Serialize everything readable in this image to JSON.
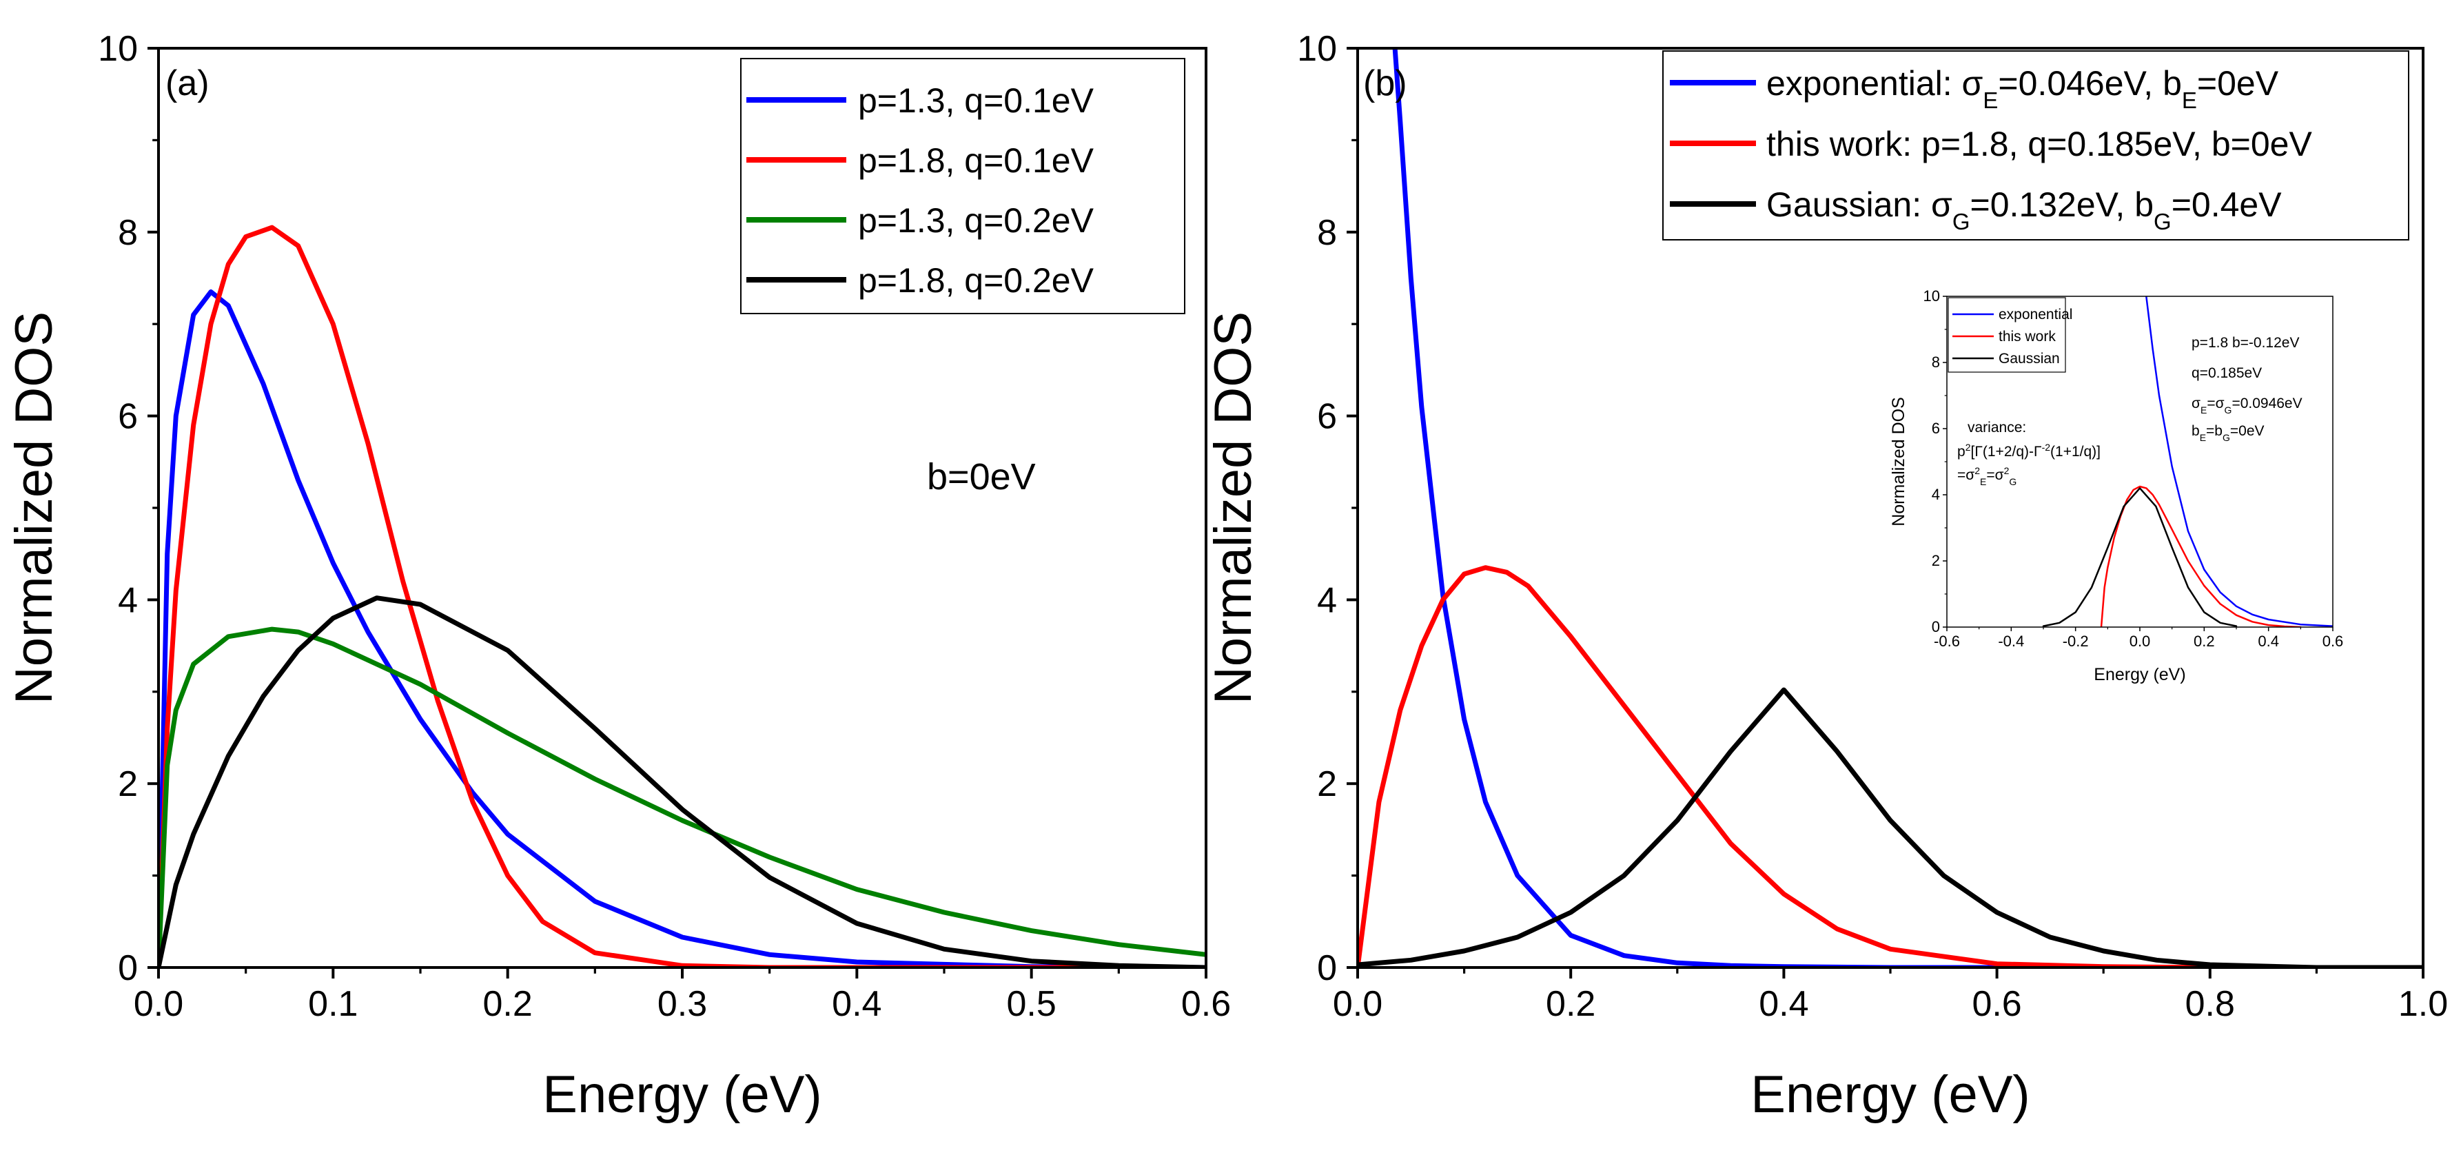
{
  "chart_data": [
    {
      "type": "line",
      "panel_label": "(a)",
      "xlabel": "Energy (eV)",
      "ylabel": "Normalized DOS",
      "xlim": [
        0,
        0.6
      ],
      "ylim": [
        0,
        10
      ],
      "xticks": [
        "0.0",
        "0.1",
        "0.2",
        "0.3",
        "0.4",
        "0.5",
        "0.6"
      ],
      "yticks": [
        "0",
        "2",
        "4",
        "6",
        "8",
        "10"
      ],
      "annotation": "b=0eV",
      "legend_position": "top-right",
      "series": [
        {
          "name": "p=1.3, q=0.1eV",
          "color": "#0000ff",
          "x": [
            0,
            0.005,
            0.01,
            0.02,
            0.03,
            0.04,
            0.06,
            0.08,
            0.1,
            0.12,
            0.15,
            0.18,
            0.2,
            0.25,
            0.3,
            0.35,
            0.4,
            0.5,
            0.6
          ],
          "y": [
            0,
            4.5,
            6.0,
            7.1,
            7.35,
            7.2,
            6.35,
            5.3,
            4.4,
            3.65,
            2.7,
            1.9,
            1.45,
            0.72,
            0.33,
            0.14,
            0.06,
            0.01,
            0.0
          ]
        },
        {
          "name": "p=1.8, q=0.1eV",
          "color": "#ff0000",
          "x": [
            0,
            0.005,
            0.01,
            0.02,
            0.03,
            0.04,
            0.05,
            0.065,
            0.08,
            0.1,
            0.12,
            0.14,
            0.16,
            0.18,
            0.2,
            0.22,
            0.25,
            0.3,
            0.35,
            0.4,
            0.6
          ],
          "y": [
            0,
            2.6,
            4.1,
            5.9,
            7.0,
            7.65,
            7.95,
            8.05,
            7.85,
            7.0,
            5.7,
            4.2,
            2.9,
            1.8,
            1.0,
            0.5,
            0.16,
            0.02,
            0.0,
            0.0,
            0.0
          ]
        },
        {
          "name": "p=1.3, q=0.2eV",
          "color": "#008000",
          "x": [
            0,
            0.005,
            0.01,
            0.02,
            0.04,
            0.065,
            0.08,
            0.1,
            0.15,
            0.2,
            0.25,
            0.3,
            0.35,
            0.4,
            0.45,
            0.5,
            0.55,
            0.6
          ],
          "y": [
            0,
            2.2,
            2.8,
            3.3,
            3.6,
            3.68,
            3.65,
            3.52,
            3.08,
            2.55,
            2.05,
            1.6,
            1.2,
            0.85,
            0.6,
            0.4,
            0.25,
            0.14
          ]
        },
        {
          "name": "p=1.8, q=0.2eV",
          "color": "#000000",
          "x": [
            0,
            0.01,
            0.02,
            0.04,
            0.06,
            0.08,
            0.1,
            0.125,
            0.15,
            0.2,
            0.25,
            0.3,
            0.35,
            0.4,
            0.45,
            0.5,
            0.55,
            0.6
          ],
          "y": [
            0,
            0.9,
            1.45,
            2.3,
            2.95,
            3.45,
            3.8,
            4.02,
            3.95,
            3.45,
            2.6,
            1.72,
            0.98,
            0.48,
            0.2,
            0.07,
            0.02,
            0.0
          ]
        }
      ]
    },
    {
      "type": "line",
      "panel_label": "(b)",
      "xlabel": "Energy (eV)",
      "ylabel": "Normalized DOS",
      "xlim": [
        0,
        1.0
      ],
      "ylim": [
        0,
        10
      ],
      "xticks": [
        "0.0",
        "0.2",
        "0.4",
        "0.6",
        "0.8",
        "1.0"
      ],
      "yticks": [
        "0",
        "2",
        "4",
        "6",
        "8",
        "10"
      ],
      "legend_position": "top-right",
      "legend": [
        {
          "color": "#0000ff",
          "parts": [
            [
              "exponential: σ",
              ""
            ],
            [
              "E",
              "sub"
            ],
            [
              "=0.046eV, b",
              ""
            ],
            [
              "E",
              "sub"
            ],
            [
              "=0eV",
              ""
            ]
          ]
        },
        {
          "color": "#ff0000",
          "parts": [
            [
              "this work: p=1.8, q=0.185eV, b=0eV",
              ""
            ]
          ]
        },
        {
          "color": "#000000",
          "parts": [
            [
              "Gaussian: σ",
              ""
            ],
            [
              "G",
              "sub"
            ],
            [
              "=0.132eV, b",
              ""
            ],
            [
              "G",
              "sub"
            ],
            [
              "=0.4eV",
              ""
            ]
          ]
        }
      ],
      "series": [
        {
          "name": "exponential",
          "color": "#0000ff",
          "x": [
            0.035,
            0.04,
            0.05,
            0.06,
            0.08,
            0.1,
            0.12,
            0.15,
            0.2,
            0.25,
            0.3,
            0.35,
            0.4,
            0.5,
            1.0
          ],
          "y": [
            10,
            9.2,
            7.5,
            6.1,
            4.05,
            2.7,
            1.8,
            1.0,
            0.35,
            0.13,
            0.05,
            0.02,
            0.01,
            0.0,
            0.0
          ]
        },
        {
          "name": "this work",
          "color": "#ff0000",
          "x": [
            0,
            0.02,
            0.04,
            0.06,
            0.08,
            0.1,
            0.12,
            0.14,
            0.16,
            0.2,
            0.25,
            0.3,
            0.35,
            0.4,
            0.45,
            0.5,
            0.6,
            0.7,
            0.8,
            1.0
          ],
          "y": [
            0,
            1.8,
            2.8,
            3.5,
            4.0,
            4.28,
            4.35,
            4.3,
            4.15,
            3.6,
            2.85,
            2.1,
            1.35,
            0.8,
            0.42,
            0.2,
            0.04,
            0.01,
            0.0,
            0.0
          ]
        },
        {
          "name": "Gaussian",
          "color": "#000000",
          "x": [
            0,
            0.05,
            0.1,
            0.15,
            0.2,
            0.25,
            0.3,
            0.35,
            0.4,
            0.45,
            0.5,
            0.55,
            0.6,
            0.65,
            0.7,
            0.75,
            0.8,
            0.9,
            1.0
          ],
          "y": [
            0.03,
            0.08,
            0.18,
            0.33,
            0.6,
            1.0,
            1.6,
            2.35,
            3.02,
            2.35,
            1.6,
            1.0,
            0.6,
            0.33,
            0.18,
            0.08,
            0.03,
            0.0,
            0.0
          ]
        }
      ]
    }
  ],
  "inset": {
    "xlabel": "Energy (eV)",
    "ylabel": "Normalized DOS",
    "xlim": [
      -0.6,
      0.6
    ],
    "ylim": [
      0,
      10
    ],
    "xticks": [
      "-0.6",
      "-0.4",
      "-0.2",
      "0.0",
      "0.2",
      "0.4",
      "0.6"
    ],
    "yticks": [
      "0",
      "2",
      "4",
      "6",
      "8",
      "10"
    ],
    "legend": [
      {
        "name": "exponential",
        "color": "#0000ff"
      },
      {
        "name": "this work",
        "color": "#ff0000"
      },
      {
        "name": "Gaussian",
        "color": "#000000"
      }
    ],
    "notes": {
      "params": "p=1.8  b=-0.12eV",
      "q": "q=0.185eV",
      "sigma_prefix": "σ",
      "sigma_sub1": "E",
      "sigma_mid": "=σ",
      "sigma_sub2": "G",
      "sigma_value": "=0.0946eV",
      "b_prefix": "b",
      "b_sub1": "E",
      "b_mid": "=b",
      "b_sub2": "G",
      "b_value": "=0eV",
      "variance_label": "variance:",
      "var_p": "p",
      "var_sup1": "2",
      "var_mid1": "[Γ(1+2/q)-Γ",
      "var_sup2": "-2",
      "var_mid2": "(1+1/q)]",
      "var_eq": "=σ",
      "var_sup3": "2",
      "var_sub3": "E",
      "var_eq2": "=σ",
      "var_sup4": "2",
      "var_sub4": "G"
    },
    "series": [
      {
        "name": "exponential",
        "color": "#0000ff",
        "x": [
          0.02,
          0.04,
          0.06,
          0.1,
          0.15,
          0.2,
          0.25,
          0.3,
          0.35,
          0.4,
          0.5,
          0.6
        ],
        "y": [
          10,
          8.4,
          7.0,
          4.85,
          2.9,
          1.74,
          1.05,
          0.63,
          0.38,
          0.23,
          0.08,
          0.03
        ]
      },
      {
        "name": "this work",
        "color": "#ff0000",
        "x": [
          -0.12,
          -0.11,
          -0.1,
          -0.08,
          -0.06,
          -0.04,
          -0.02,
          0.0,
          0.02,
          0.04,
          0.06,
          0.1,
          0.15,
          0.2,
          0.25,
          0.3,
          0.35,
          0.4,
          0.45,
          0.5
        ],
        "y": [
          0,
          1.2,
          1.8,
          2.7,
          3.35,
          3.85,
          4.15,
          4.25,
          4.2,
          4.0,
          3.7,
          2.95,
          2.0,
          1.25,
          0.7,
          0.36,
          0.16,
          0.06,
          0.02,
          0.0
        ]
      },
      {
        "name": "Gaussian",
        "color": "#000000",
        "x": [
          -0.3,
          -0.25,
          -0.2,
          -0.15,
          -0.1,
          -0.05,
          0.0,
          0.05,
          0.1,
          0.15,
          0.2,
          0.25,
          0.3
        ],
        "y": [
          0.03,
          0.13,
          0.45,
          1.2,
          2.4,
          3.65,
          4.2,
          3.65,
          2.4,
          1.2,
          0.45,
          0.13,
          0.03
        ]
      }
    ]
  }
}
